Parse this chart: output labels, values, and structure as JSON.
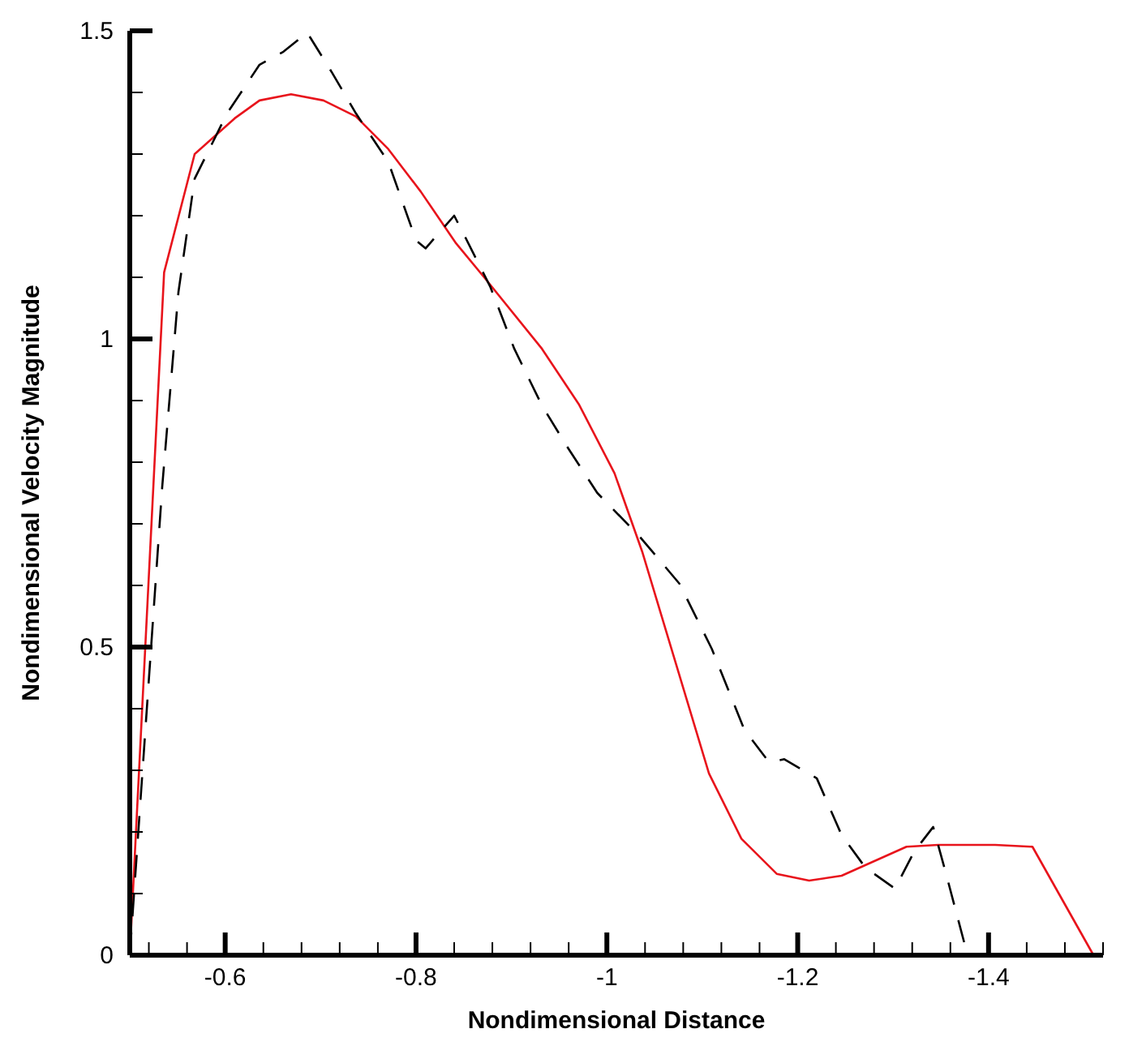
{
  "chart_data": {
    "type": "line",
    "xlabel": "Nondimensional Distance",
    "ylabel": "Nondimensional Velocity Magnitude",
    "xlim": [
      -0.5,
      -1.52
    ],
    "ylim": [
      0,
      1.5
    ],
    "xticks": [
      {
        "value": -0.52,
        "label": null
      },
      {
        "value": -0.56,
        "label": null
      },
      -0.6,
      {
        "value": -0.64,
        "label": null
      },
      {
        "value": -0.68,
        "label": null
      },
      {
        "value": -0.72,
        "label": null
      },
      {
        "value": -0.76,
        "label": null
      },
      -0.8,
      {
        "value": -0.84,
        "label": null
      },
      {
        "value": -0.88,
        "label": null
      },
      {
        "value": -0.92,
        "label": null
      },
      {
        "value": -0.96,
        "label": null
      },
      -1,
      {
        "value": -1.04,
        "label": null
      },
      {
        "value": -1.08,
        "label": null
      },
      {
        "value": -1.12,
        "label": null
      },
      {
        "value": -1.16,
        "label": null
      },
      -1.2,
      {
        "value": -1.24,
        "label": null
      },
      {
        "value": -1.28,
        "label": null
      },
      {
        "value": -1.32,
        "label": null
      },
      {
        "value": -1.36,
        "label": null
      },
      -1.4,
      {
        "value": -1.44,
        "label": null
      },
      {
        "value": -1.48,
        "label": null
      },
      {
        "value": -1.52,
        "label": null
      }
    ],
    "yticks": [
      0,
      {
        "value": 0.1,
        "label": null
      },
      {
        "value": 0.2,
        "label": null
      },
      {
        "value": 0.3,
        "label": null
      },
      {
        "value": 0.4,
        "label": null
      },
      0.5,
      {
        "value": 0.6,
        "label": null
      },
      {
        "value": 0.7,
        "label": null
      },
      {
        "value": 0.8,
        "label": null
      },
      {
        "value": 0.9,
        "label": null
      },
      1,
      {
        "value": 1.1,
        "label": null
      },
      {
        "value": 1.2,
        "label": null
      },
      {
        "value": 1.3,
        "label": null
      },
      {
        "value": 1.4,
        "label": null
      },
      1.5
    ],
    "grid": false,
    "series": [
      {
        "color": "#e8141c",
        "line_style": "solid",
        "x": [
          -0.5,
          -0.536,
          -0.568,
          -0.61,
          -0.636,
          -0.669,
          -0.703,
          -0.737,
          -0.771,
          -0.805,
          -0.842,
          -0.873,
          -0.932,
          -0.971,
          -1.008,
          -1.037,
          -1.107,
          -1.141,
          -1.178,
          -1.212,
          -1.246,
          -1.314,
          -1.347,
          -1.407,
          -1.446,
          -1.51
        ],
        "values": [
          0,
          1.108,
          1.3,
          1.358,
          1.387,
          1.397,
          1.387,
          1.361,
          1.308,
          1.239,
          1.155,
          1.097,
          0.984,
          0.893,
          0.782,
          0.655,
          0.295,
          0.189,
          0.132,
          0.121,
          0.129,
          0.176,
          0.179,
          0.179,
          0.176,
          0
        ]
      },
      {
        "color": "#000000",
        "line_style": "dashed",
        "x": [
          -0.5,
          -0.534,
          -0.551,
          -0.568,
          -0.602,
          -0.636,
          -0.661,
          -0.686,
          -0.712,
          -0.737,
          -0.771,
          -0.8,
          -0.81,
          -0.84,
          -0.85,
          -0.878,
          -0.903,
          -0.932,
          -0.958,
          -0.99,
          -1.034,
          -1.076,
          -1.11,
          -1.144,
          -1.17,
          -1.186,
          -1.22,
          -1.246,
          -1.271,
          -1.302,
          -1.322,
          -1.342,
          -1.356,
          -1.378
        ],
        "values": [
          0,
          0.76,
          1.076,
          1.26,
          1.366,
          1.445,
          1.466,
          1.497,
          1.432,
          1.366,
          1.287,
          1.16,
          1.147,
          1.2,
          1.17,
          1.084,
          0.984,
          0.892,
          0.826,
          0.75,
          0.68,
          0.603,
          0.497,
          0.366,
          0.313,
          0.318,
          0.287,
          0.195,
          0.142,
          0.108,
          0.168,
          0.208,
          0.129,
          0
        ]
      }
    ]
  }
}
